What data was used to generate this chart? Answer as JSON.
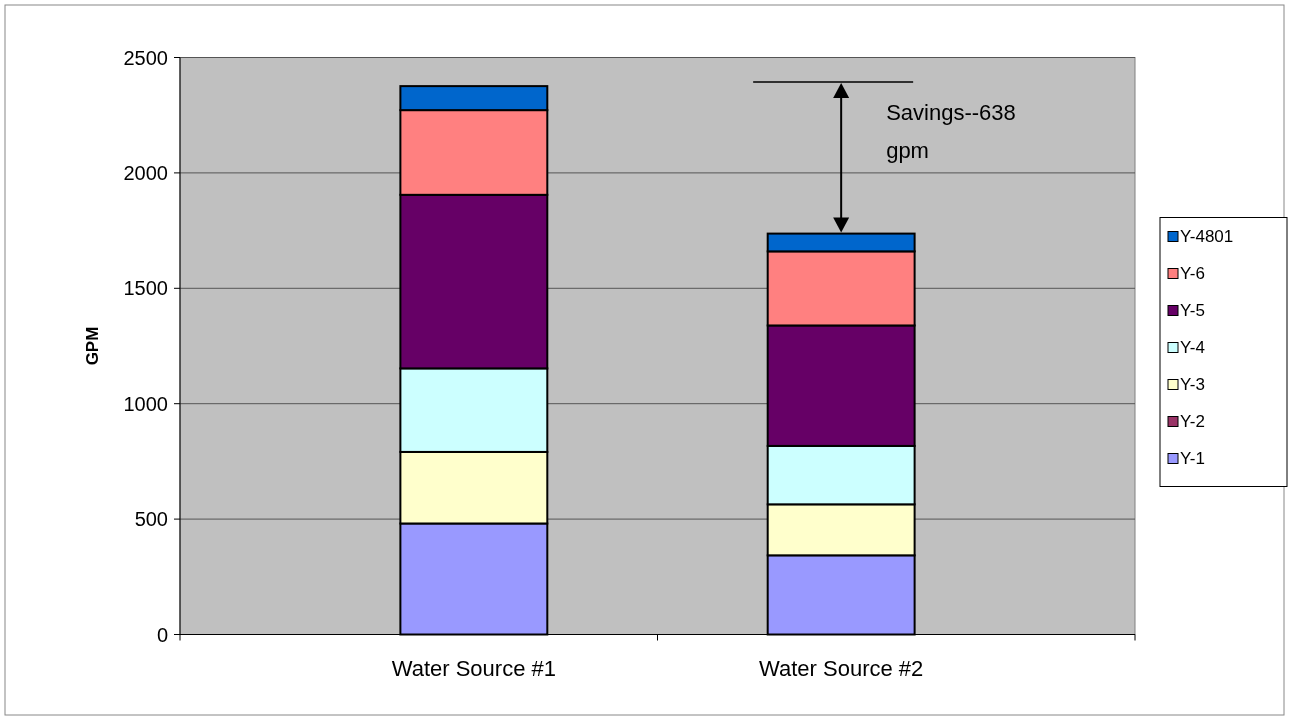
{
  "chart_data": {
    "type": "bar",
    "stacked": true,
    "ylabel": "GPM",
    "categories": [
      "Water Source #1",
      "Water Source #2"
    ],
    "ylim": [
      0,
      2500
    ],
    "yticks": [
      0,
      500,
      1000,
      1500,
      2000,
      2500
    ],
    "grid": "y",
    "legend": "right",
    "series": [
      {
        "name": "Y-1",
        "color": "#9999ff",
        "values": [
          481,
          343
        ]
      },
      {
        "name": "Y-2",
        "color": "#993366",
        "values": [
          0,
          0
        ]
      },
      {
        "name": "Y-3",
        "color": "#ffffcc",
        "values": [
          310,
          221
        ]
      },
      {
        "name": "Y-4",
        "color": "#ccffff",
        "values": [
          362,
          253
        ]
      },
      {
        "name": "Y-5",
        "color": "#660066",
        "values": [
          752,
          522
        ]
      },
      {
        "name": "Y-6",
        "color": "#ff8080",
        "values": [
          367,
          321
        ]
      },
      {
        "name": "Y-4801",
        "color": "#0066cc",
        "values": [
          104,
          77
        ]
      }
    ],
    "annotations": [
      "Savings--638 gpm"
    ]
  }
}
